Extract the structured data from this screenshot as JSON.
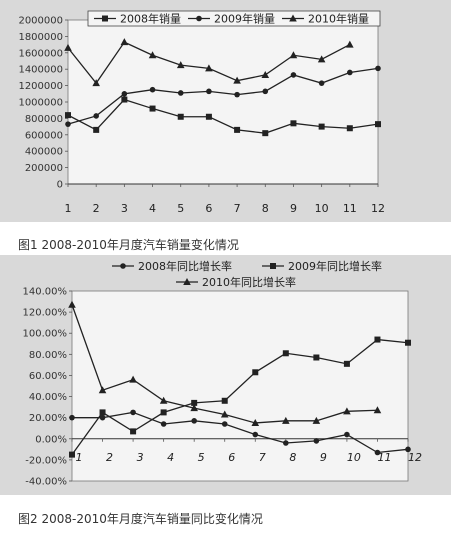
{
  "figure1": {
    "caption": "图1 2008-2010年月度汽车销量变化情况",
    "chart_data": {
      "type": "line",
      "categories": [
        "1",
        "2",
        "3",
        "4",
        "5",
        "6",
        "7",
        "8",
        "9",
        "10",
        "11",
        "12"
      ],
      "ylim": [
        0,
        2000000
      ],
      "yticks": [
        "0",
        "200000",
        "400000",
        "600000",
        "800000",
        "1000000",
        "1200000",
        "1400000",
        "1600000",
        "1800000",
        "2000000"
      ],
      "legend_position": "top",
      "series": [
        {
          "name": "2008年销量",
          "marker": "square",
          "values": [
            840000,
            660000,
            1030000,
            920000,
            820000,
            820000,
            660000,
            620000,
            740000,
            700000,
            680000,
            730000
          ]
        },
        {
          "name": "2009年销量",
          "marker": "circle",
          "values": [
            730000,
            830000,
            1100000,
            1150000,
            1110000,
            1130000,
            1090000,
            1130000,
            1330000,
            1230000,
            1360000,
            1410000
          ]
        },
        {
          "name": "2010年销量",
          "marker": "triangle",
          "values": [
            1660000,
            1230000,
            1730000,
            1570000,
            1450000,
            1410000,
            1260000,
            1330000,
            1570000,
            1520000,
            1700000,
            null
          ]
        }
      ]
    }
  },
  "figure2": {
    "caption": "图2 2008-2010年月度汽车销量同比变化情况",
    "chart_data": {
      "type": "line",
      "categories": [
        "1",
        "2",
        "3",
        "4",
        "5",
        "6",
        "7",
        "8",
        "9",
        "10",
        "11",
        "12"
      ],
      "ylim": [
        -0.4,
        1.4
      ],
      "yticks": [
        "140.00%",
        "120.00%",
        "100.00%",
        "80.00%",
        "60.00%",
        "40.00%",
        "20.00%",
        "0.00%",
        "-20.00%",
        "-40.00%"
      ],
      "legend_position": "top",
      "series": [
        {
          "name": "2008年同比增长率",
          "marker": "circle",
          "values": [
            0.2,
            0.2,
            0.25,
            0.14,
            0.17,
            0.14,
            0.04,
            -0.04,
            -0.02,
            0.04,
            -0.13,
            -0.1
          ]
        },
        {
          "name": "2009年同比增长率",
          "marker": "square",
          "values": [
            -0.15,
            0.25,
            0.07,
            0.25,
            0.34,
            0.36,
            0.63,
            0.81,
            0.77,
            0.71,
            0.94,
            0.91
          ]
        },
        {
          "name": "2010年同比增长率",
          "marker": "triangle",
          "values": [
            1.27,
            0.46,
            0.56,
            0.36,
            0.29,
            0.23,
            0.15,
            0.17,
            0.17,
            0.26,
            0.27,
            null
          ]
        }
      ]
    }
  }
}
